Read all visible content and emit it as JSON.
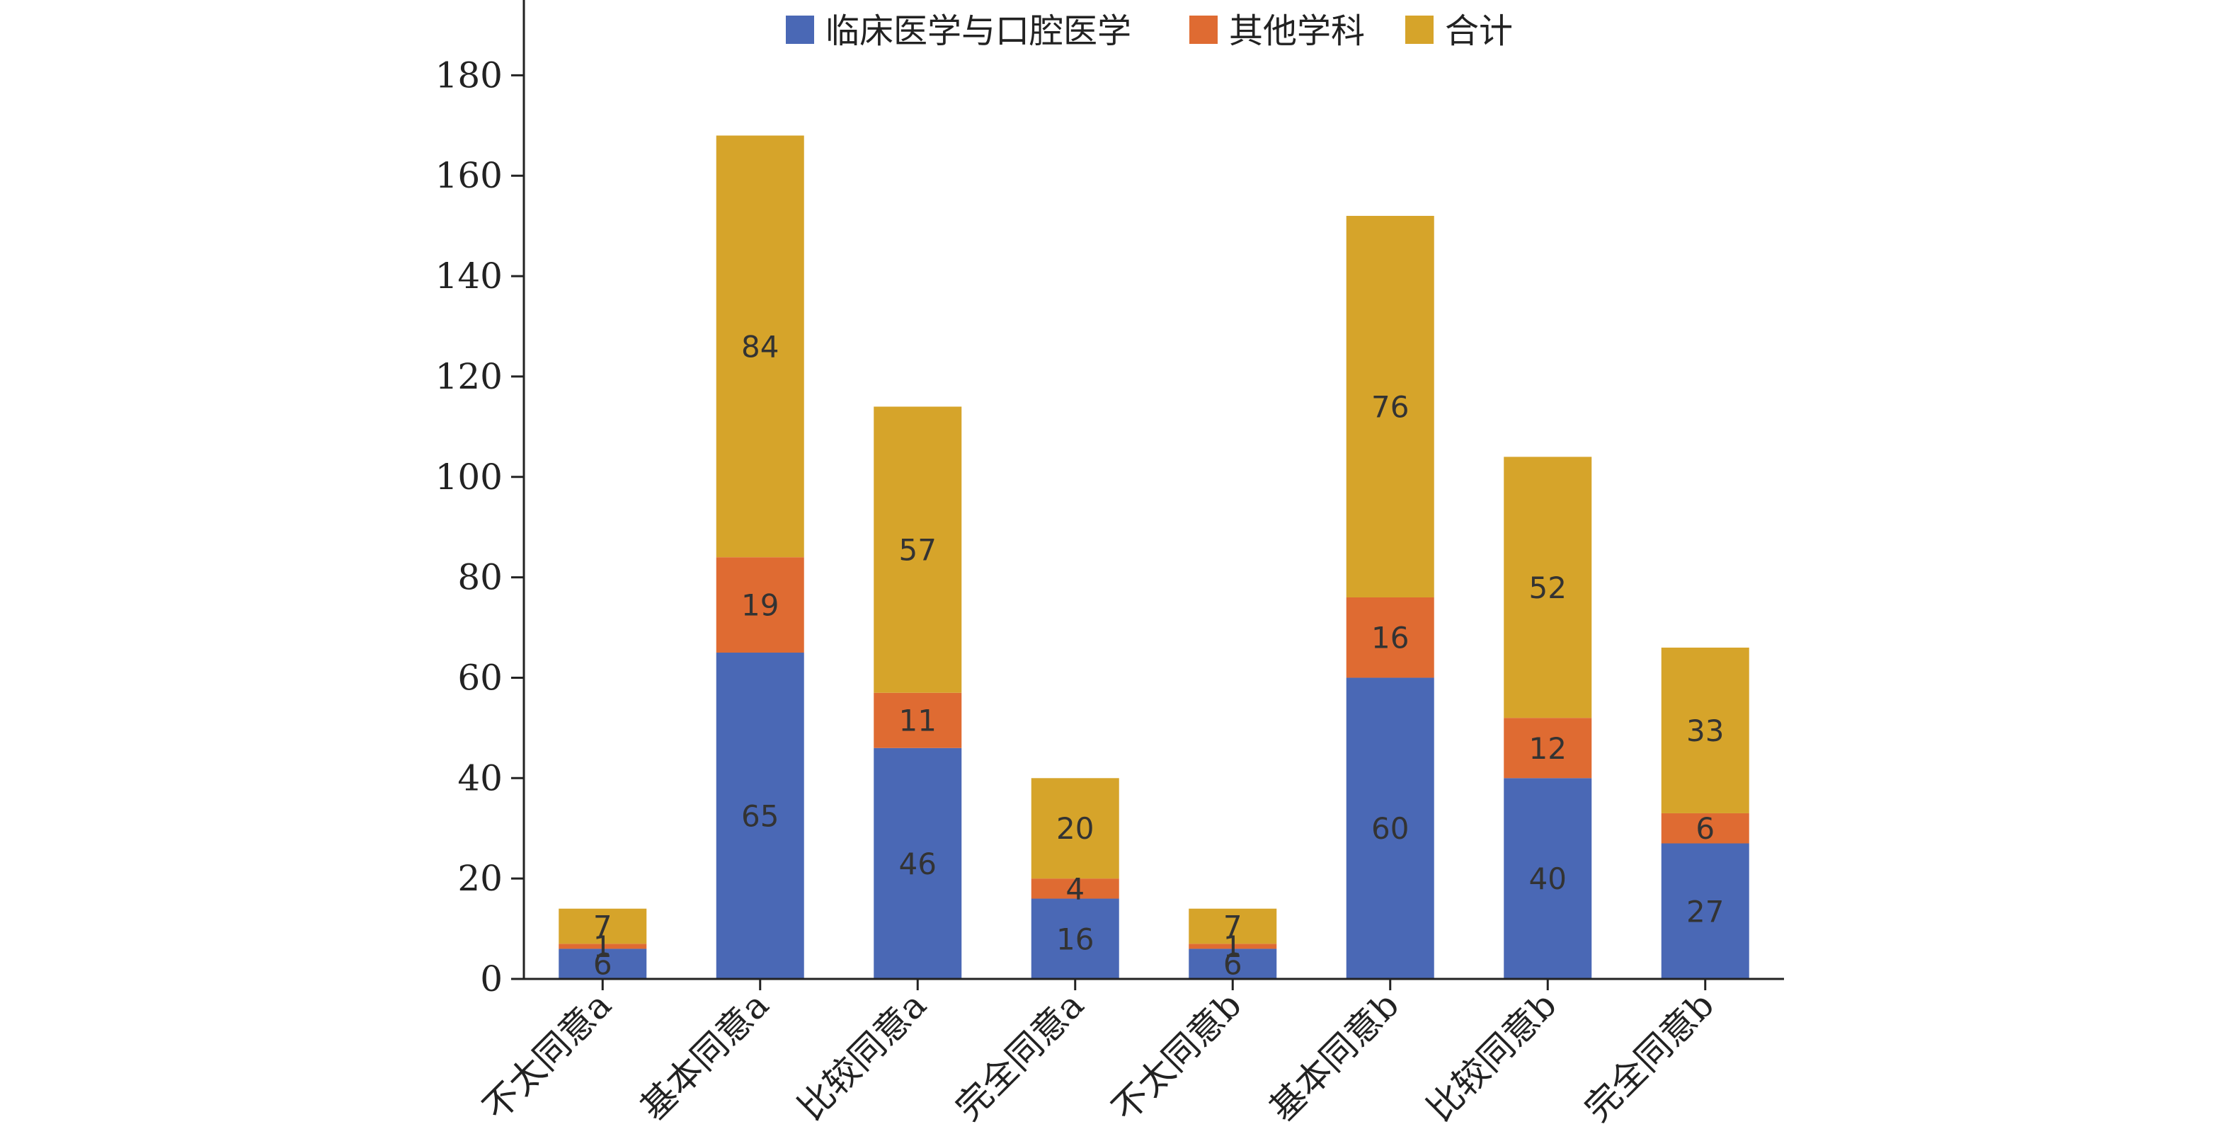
{
  "chart_data": {
    "type": "bar",
    "stacked": true,
    "title": "",
    "xlabel": "",
    "ylabel": "",
    "ylim": [
      0,
      195
    ],
    "yticks": [
      0,
      20,
      40,
      60,
      80,
      100,
      120,
      140,
      160,
      180
    ],
    "grid": false,
    "legend_position": "top-center",
    "categories": [
      "不太同意a",
      "基本同意a",
      "比较同意a",
      "完全同意a",
      "不太同意b",
      "基本同意b",
      "比较同意b",
      "完全同意b"
    ],
    "series": [
      {
        "name": "临床医学与口腔医学",
        "color": "#4a68b5",
        "values": [
          6,
          65,
          46,
          16,
          6,
          60,
          40,
          27
        ]
      },
      {
        "name": "其他学科",
        "color": "#df6b32",
        "values": [
          1,
          19,
          11,
          4,
          1,
          16,
          12,
          6
        ]
      },
      {
        "name": "合计",
        "color": "#d6a42a",
        "values": [
          7,
          84,
          57,
          20,
          7,
          76,
          52,
          33
        ]
      }
    ]
  }
}
